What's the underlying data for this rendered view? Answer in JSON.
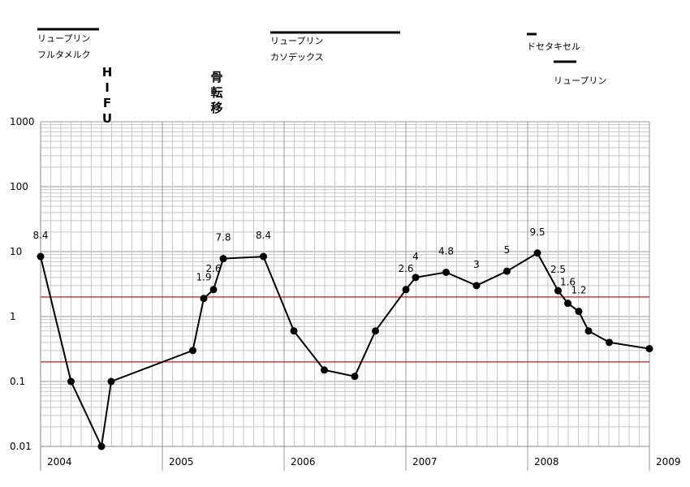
{
  "chart_data": {
    "type": "line",
    "y_scale": "log",
    "ylim": [
      0.01,
      1000
    ],
    "xlim": [
      2004,
      2009
    ],
    "x_tick_labels": [
      "2004",
      "2005",
      "2006",
      "2007",
      "2008",
      "2009"
    ],
    "y_tick_labels": [
      "1000",
      "100",
      "10",
      "1",
      "0.1",
      "0.01"
    ],
    "y_tick_values": [
      1000,
      100,
      10,
      1,
      0.1,
      0.01
    ],
    "reference_lines": [
      2,
      0.2
    ],
    "reference_line_color": "#cc0000",
    "grid": true,
    "points": [
      {
        "x": 2004.0,
        "y": 8.4,
        "label": "8.4"
      },
      {
        "x": 2004.25,
        "y": 0.1,
        "label": ""
      },
      {
        "x": 2004.5,
        "y": 0.01,
        "label": ""
      },
      {
        "x": 2004.58,
        "y": 0.1,
        "label": ""
      },
      {
        "x": 2005.25,
        "y": 0.3,
        "label": ""
      },
      {
        "x": 2005.34,
        "y": 1.9,
        "label": "1.9"
      },
      {
        "x": 2005.42,
        "y": 2.6,
        "label": "2.6"
      },
      {
        "x": 2005.5,
        "y": 7.8,
        "label": "7.8"
      },
      {
        "x": 2005.83,
        "y": 8.4,
        "label": "8.4"
      },
      {
        "x": 2006.08,
        "y": 0.6,
        "label": ""
      },
      {
        "x": 2006.33,
        "y": 0.15,
        "label": ""
      },
      {
        "x": 2006.58,
        "y": 0.12,
        "label": ""
      },
      {
        "x": 2006.75,
        "y": 0.6,
        "label": ""
      },
      {
        "x": 2007.0,
        "y": 2.6,
        "label": "2.6"
      },
      {
        "x": 2007.08,
        "y": 4,
        "label": "4"
      },
      {
        "x": 2007.33,
        "y": 4.8,
        "label": "4.8"
      },
      {
        "x": 2007.58,
        "y": 3,
        "label": "3"
      },
      {
        "x": 2007.83,
        "y": 5,
        "label": "5"
      },
      {
        "x": 2008.08,
        "y": 9.5,
        "label": "9.5"
      },
      {
        "x": 2008.25,
        "y": 2.5,
        "label": "2.5"
      },
      {
        "x": 2008.33,
        "y": 1.6,
        "label": "1.6"
      },
      {
        "x": 2008.42,
        "y": 1.2,
        "label": "1.2"
      },
      {
        "x": 2008.5,
        "y": 0.6,
        "label": ""
      },
      {
        "x": 2008.67,
        "y": 0.4,
        "label": ""
      },
      {
        "x": 2009.0,
        "y": 0.32,
        "label": ""
      }
    ],
    "annotations": {
      "leuprorelin_1": "リュープリン",
      "flutamide": "フルタメルク",
      "hifu": "HIFU",
      "bone_metastasis": "骨転移",
      "leuprorelin_2": "リュープリン",
      "casodex": "カソデックス",
      "docetaxel": "ドセタキセル",
      "leuprorelin_3": "リュープリン"
    }
  }
}
